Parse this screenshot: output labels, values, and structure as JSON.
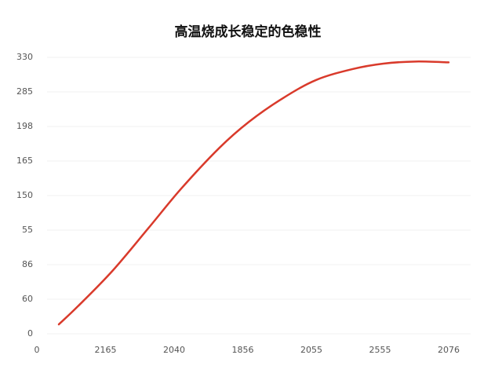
{
  "chart_data": {
    "type": "line",
    "title": "高温烧成长稳定的色稳性",
    "x": [
      0.32,
      0.6,
      1.1,
      1.63,
      2.1,
      2.66,
      3.09,
      3.58,
      4.07,
      4.6,
      5.05,
      5.52,
      6
    ],
    "series": [
      {
        "color": "#d93a2b",
        "values": [
          11.25,
          33,
          75,
          126.6,
          173,
          222,
          253,
          281,
          303,
          316,
          322.5,
          325,
          324
        ]
      }
    ],
    "xlim": [
      0,
      6
    ],
    "xticks": [
      0,
      {
        "value": 1,
        "label": "2165"
      },
      {
        "value": 2,
        "label": "2040"
      },
      {
        "value": 3,
        "label": "1856"
      },
      {
        "value": 4,
        "label": "2055"
      },
      {
        "value": 5,
        "label": "2555"
      },
      {
        "value": 6,
        "label": "2076"
      }
    ],
    "ylim": [
      0,
      330
    ],
    "yticks": [
      0,
      {
        "value": 41.25,
        "label": "60"
      },
      {
        "value": 82.5,
        "label": "86"
      },
      {
        "value": 123.75,
        "label": "55"
      },
      {
        "value": 165,
        "label": "150"
      },
      {
        "value": 206.25,
        "label": "165"
      },
      {
        "value": 247.5,
        "label": "198"
      },
      {
        "value": 288.75,
        "label": "285"
      },
      330
    ],
    "grid": true
  }
}
